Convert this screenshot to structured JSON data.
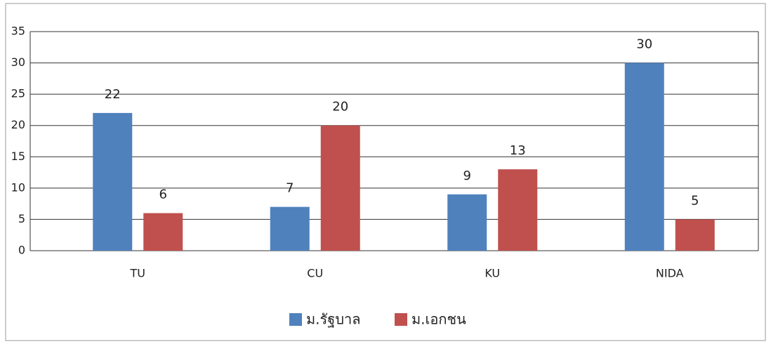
{
  "chart_data": {
    "type": "bar",
    "categories": [
      "TU",
      "CU",
      "KU",
      "NIDA"
    ],
    "series": [
      {
        "name": "ม.รัฐบาล",
        "color": "#4f81bd",
        "values": [
          22,
          7,
          9,
          30
        ]
      },
      {
        "name": "ม.เอกชน",
        "color": "#c0504d",
        "values": [
          6,
          20,
          13,
          5
        ]
      }
    ],
    "ylim": [
      0,
      35
    ],
    "yticks": [
      0,
      5,
      10,
      15,
      20,
      25,
      30,
      35
    ],
    "grid": true,
    "data_labels": true,
    "legend": "bottom"
  }
}
